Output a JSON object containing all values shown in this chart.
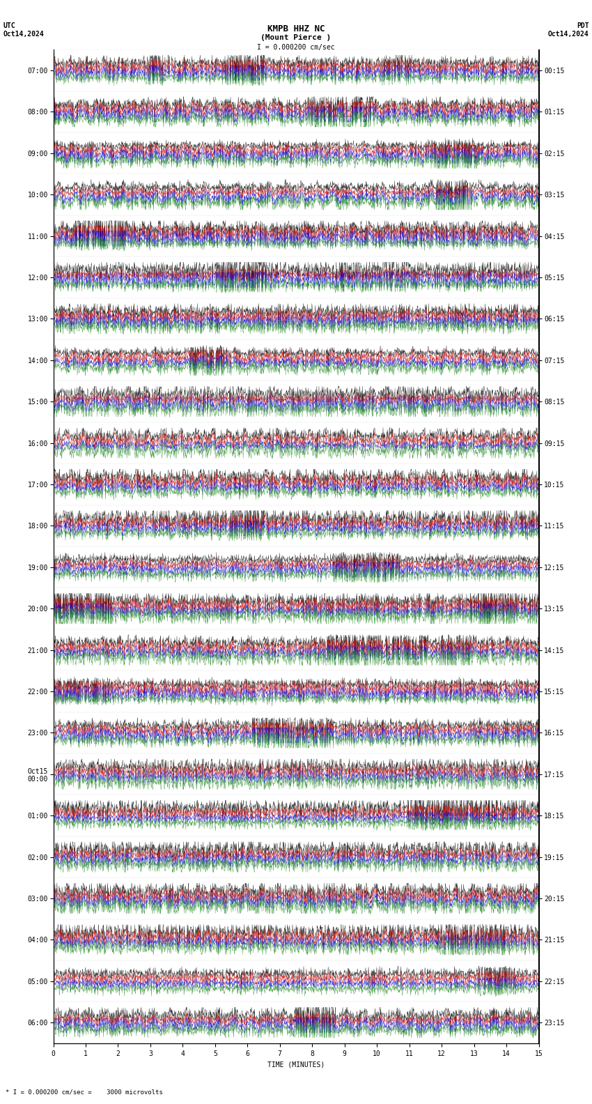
{
  "title_line1": "KMPB HHZ NC",
  "title_line2": "(Mount Pierce )",
  "scale_label": "I = 0.000200 cm/sec",
  "utc_label": "UTC",
  "date_left": "Oct14,2024",
  "pdt_label": "PDT",
  "date_right": "Oct14,2024",
  "bottom_label": "TIME (MINUTES)",
  "bottom_scale": "* I = 0.000200 cm/sec =    3000 microvolts",
  "left_times": [
    "07:00",
    "08:00",
    "09:00",
    "10:00",
    "11:00",
    "12:00",
    "13:00",
    "14:00",
    "15:00",
    "16:00",
    "17:00",
    "18:00",
    "19:00",
    "20:00",
    "21:00",
    "22:00",
    "23:00",
    "Oct15\n00:00",
    "01:00",
    "02:00",
    "03:00",
    "04:00",
    "05:00",
    "06:00"
  ],
  "right_times": [
    "00:15",
    "01:15",
    "02:15",
    "03:15",
    "04:15",
    "05:15",
    "06:15",
    "07:15",
    "08:15",
    "09:15",
    "10:15",
    "11:15",
    "12:15",
    "13:15",
    "14:15",
    "15:15",
    "16:15",
    "17:15",
    "18:15",
    "19:15",
    "20:15",
    "21:15",
    "22:15",
    "23:15"
  ],
  "num_traces": 24,
  "minutes_per_trace": 15,
  "colors_cycle": [
    "black",
    "#cc0000",
    "#0000cc",
    "#228822"
  ],
  "bg_color": "white",
  "fig_width": 8.5,
  "fig_height": 15.84,
  "dpi": 100,
  "xlim": [
    0,
    15
  ],
  "xlabel_ticks": [
    0,
    1,
    2,
    3,
    4,
    5,
    6,
    7,
    8,
    9,
    10,
    11,
    12,
    13,
    14,
    15
  ],
  "title_fontsize": 9,
  "label_fontsize": 7,
  "tick_fontsize": 7
}
